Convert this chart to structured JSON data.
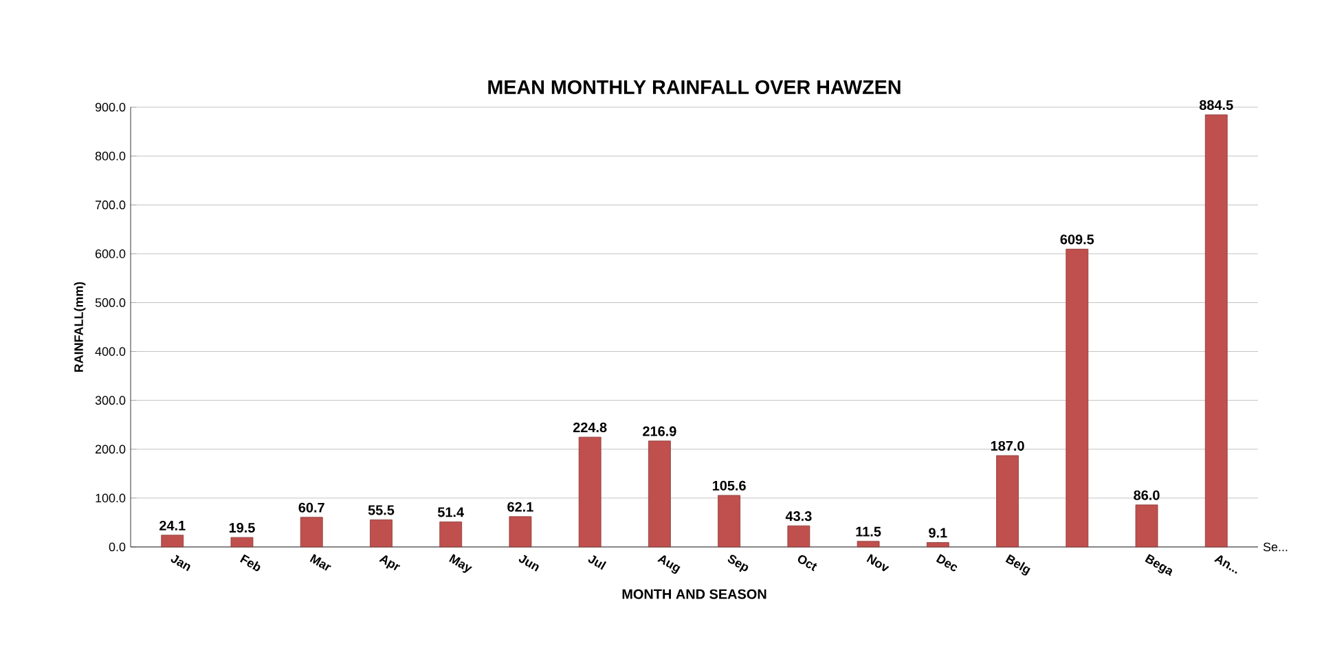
{
  "chart_data": {
    "type": "bar",
    "title": "MEAN MONTHLY RAINFALL OVER HAWZEN",
    "xlabel": "MONTH AND SEASON",
    "ylabel": "RAINFALL(mm)",
    "categories": [
      "Jan",
      "Feb",
      "Mar",
      "Apr",
      "May",
      "Jun",
      "Jul",
      "Aug",
      "Sep",
      "Oct",
      "Nov",
      "Dec",
      "Belg",
      null,
      "Bega",
      "An..."
    ],
    "series": [
      {
        "name": "Se...",
        "color": "#c0504d",
        "values": [
          24.1,
          19.5,
          60.7,
          55.5,
          51.4,
          62.1,
          224.8,
          216.9,
          105.6,
          43.3,
          11.5,
          9.1,
          187.0,
          609.5,
          86.0,
          884.5
        ]
      }
    ],
    "value_labels": [
      "24.1",
      "19.5",
      "60.7",
      "55.5",
      "51.4",
      "62.1",
      "224.8",
      "216.9",
      "105.6",
      "43.3",
      "11.5",
      "9.1",
      "187.0",
      "609.5",
      "86.0",
      "884.5"
    ],
    "ylim": [
      0,
      900
    ],
    "yticks": [
      {
        "value": 0,
        "label": "0.0"
      },
      {
        "value": 100,
        "label": "100.0"
      },
      {
        "value": 200,
        "label": "200.0"
      },
      {
        "value": 300,
        "label": "300.0"
      },
      {
        "value": 400,
        "label": "400.0"
      },
      {
        "value": 500,
        "label": "500.0"
      },
      {
        "value": 600,
        "label": "600.0"
      },
      {
        "value": 700,
        "label": "700.0"
      },
      {
        "value": 800,
        "label": "800.0"
      },
      {
        "value": 900,
        "label": "900.0"
      }
    ],
    "grid": "y"
  }
}
